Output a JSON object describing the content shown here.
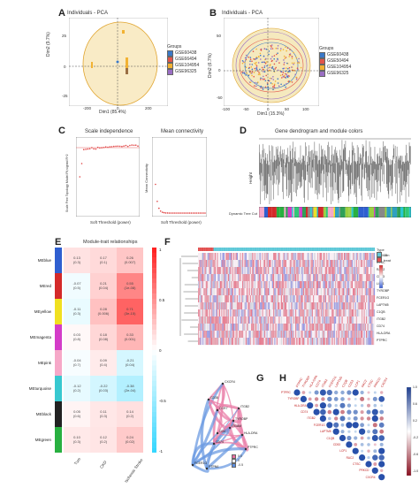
{
  "figure": {
    "panels": {
      "A": {
        "label": "A",
        "title": "Individuals - PCA",
        "xlabel": "Dim1 (85.4%)",
        "ylabel": "Dim2 (9.7%)",
        "xticks": [
          "-200",
          "0",
          "200"
        ],
        "yticks": [
          "25",
          "0",
          "-25"
        ],
        "legend_title": "Groups",
        "groups": [
          "GSE60438",
          "GSE66494",
          "GSE104954",
          "GSE96325"
        ],
        "group_colors": [
          "#3a78c8",
          "#e2554a",
          "#f2b233",
          "#9a6ec4"
        ]
      },
      "B": {
        "label": "B",
        "title": "Individuals - PCA",
        "xlabel": "Dim1 (15.3%)",
        "ylabel": "Dim2 (6.7%)",
        "xticks": [
          "-100",
          "-50",
          "0",
          "50",
          "100"
        ],
        "yticks": [
          "50",
          "0",
          "-50"
        ],
        "legend_title": "Groups",
        "groups": [
          "GSE60438",
          "GSE50494",
          "GSE104954",
          "GSE96325"
        ],
        "group_colors": [
          "#3a78c8",
          "#e2554a",
          "#f2b233",
          "#9a6ec4"
        ]
      },
      "C": {
        "label": "C",
        "left_title": "Scale independence",
        "right_title": "Mean connectivity",
        "left_xlabel": "Soft Threshold (power)",
        "left_ylabel": "Scale Free Topology Model Fit,signed R^2",
        "right_xlabel": "Soft Threshold (power)",
        "right_ylabel": "Mean Connectivity",
        "xticks": [
          "0",
          "5",
          "10",
          "15",
          "20",
          "25",
          "30"
        ]
      },
      "D": {
        "label": "D",
        "title": "Gene dendrogram and module colors",
        "ylabel": "Height",
        "bar_label": "Dynamic Tree Cut"
      },
      "E": {
        "label": "E",
        "title": "Module-trait relationships",
        "modules": [
          "MEblue",
          "MEred",
          "MEyellow",
          "MEmagenta",
          "MEpink",
          "MEturquoise",
          "MEblack",
          "MEgreen"
        ],
        "module_colors": [
          "#2f5fd0",
          "#d42a2a",
          "#f0e020",
          "#d43cc8",
          "#f6a8c8",
          "#38c8d0",
          "#222222",
          "#28b040"
        ],
        "traits": [
          "Tum",
          "CKD",
          "Ischemic Stroke"
        ],
        "scale_ticks": [
          "1",
          "0.5",
          "0",
          "-0.5",
          "-1"
        ],
        "cells": [
          [
            {
              "r": "0.13",
              "p": "(0.3)"
            },
            {
              "r": "0.17",
              "p": "(0.1)"
            },
            {
              "r": "0.26",
              "p": "(0.007)"
            }
          ],
          [
            {
              "r": "-0.07",
              "p": "(0.5)"
            },
            {
              "r": "0.21",
              "p": "(0.04)"
            },
            {
              "r": "0.55",
              "p": "(1e-08)"
            }
          ],
          [
            {
              "r": "-0.11",
              "p": "(0.3)"
            },
            {
              "r": "0.28",
              "p": "(0.006)"
            },
            {
              "r": "0.71",
              "p": "(3e-15)"
            }
          ],
          [
            {
              "r": "0.03",
              "p": "(0.8)"
            },
            {
              "r": "0.18",
              "p": "(0.08)"
            },
            {
              "r": "0.33",
              "p": "(0.001)"
            }
          ],
          [
            {
              "r": "-0.04",
              "p": "(0.7)"
            },
            {
              "r": "0.09",
              "p": "(0.4)"
            },
            {
              "r": "-0.21",
              "p": "(0.04)"
            }
          ],
          [
            {
              "r": "-0.12",
              "p": "(0.2)"
            },
            {
              "r": "-0.22",
              "p": "(0.03)"
            },
            {
              "r": "-0.38",
              "p": "(2e-04)"
            }
          ],
          [
            {
              "r": "0.05",
              "p": "(0.6)"
            },
            {
              "r": "0.11",
              "p": "(0.3)"
            },
            {
              "r": "0.14",
              "p": "(0.2)"
            }
          ],
          [
            {
              "r": "0.10",
              "p": "(0.3)"
            },
            {
              "r": "0.12",
              "p": "(0.2)"
            },
            {
              "r": "0.24",
              "p": "(0.02)"
            }
          ]
        ],
        "values": [
          [
            0.13,
            0.17,
            0.26
          ],
          [
            -0.07,
            0.21,
            0.55
          ],
          [
            -0.11,
            0.28,
            0.71
          ],
          [
            0.03,
            0.18,
            0.33
          ],
          [
            -0.04,
            0.09,
            -0.21
          ],
          [
            -0.12,
            -0.22,
            -0.38
          ],
          [
            0.05,
            0.11,
            0.14
          ],
          [
            0.1,
            0.12,
            0.24
          ]
        ]
      },
      "F": {
        "label": "F",
        "legend_items": [
          "Type",
          "con",
          "treat"
        ],
        "genes": [
          "PRKCD",
          "CTSC",
          "RAC2",
          "CD53",
          "LCP1",
          "TYROBP",
          "FCER1G",
          "LAPTM5",
          "C1QB",
          "ITGB2",
          "CD74",
          "HLA-DRA",
          "PTPRC"
        ]
      },
      "G": {
        "label": "G",
        "nodes": [
          "CXCR4",
          "CD38",
          "CCR7",
          "ITGB2",
          "TYROBP",
          "ITGAM",
          "CD4",
          "HLA-DRA",
          "CD74",
          "PTPRC",
          "FCER1G",
          "PTPN6"
        ],
        "legend_values": [
          "0.5",
          "0",
          "-0.5"
        ]
      },
      "H": {
        "label": "H",
        "genes": [
          "PTPRC",
          "TYROBP",
          "HLA-DRA",
          "CD74",
          "ITGB2",
          "FCER1G",
          "LAPTM5",
          "C1QB",
          "CD53",
          "LCP1",
          "RAC2",
          "CTSC",
          "PRKCD",
          "CXCR4"
        ],
        "scale_ticks": [
          "1.0",
          "0.6",
          "0.2",
          "-0.2",
          "-0.6",
          "-1.0"
        ]
      }
    }
  }
}
